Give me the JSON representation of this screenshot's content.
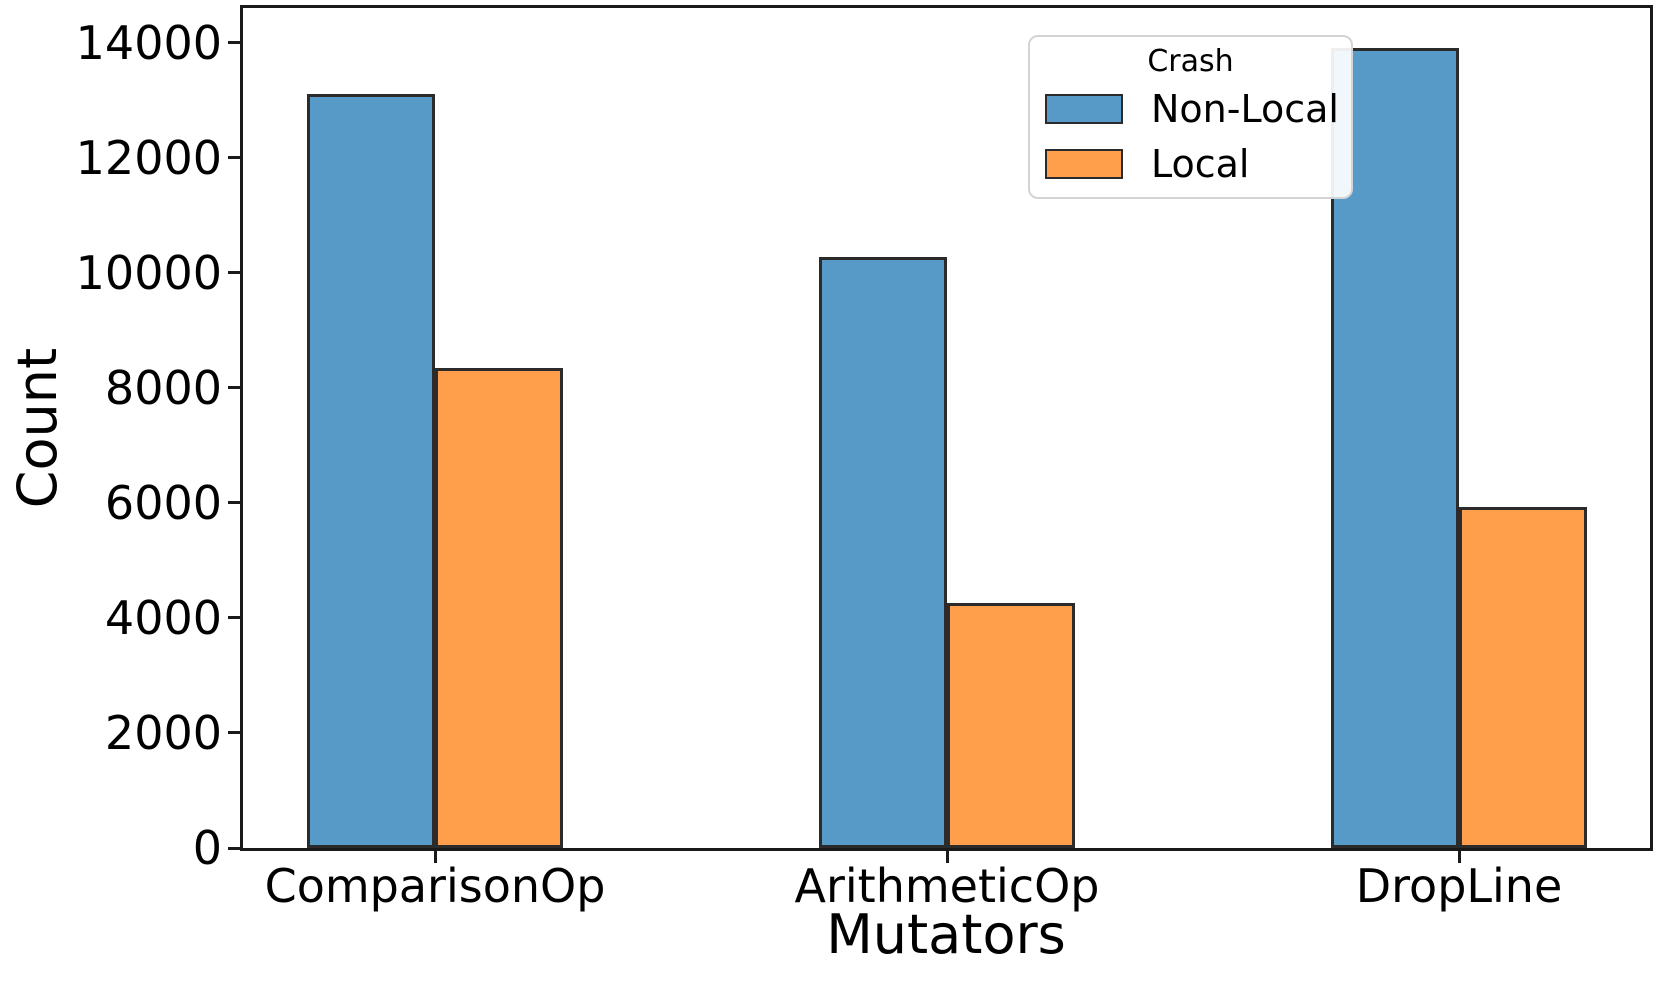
{
  "chart_data": {
    "type": "bar",
    "title": "",
    "xlabel": "Mutators",
    "ylabel": "Count",
    "categories": [
      "ComparisonOp",
      "ArithmeticOp",
      "DropLine"
    ],
    "series": [
      {
        "name": "Non-Local",
        "color": "#5799C7",
        "values": [
          13100,
          10270,
          13900
        ]
      },
      {
        "name": "Local",
        "color": "#FF9F4C",
        "values": [
          8350,
          4250,
          5930
        ]
      }
    ],
    "legend": {
      "title": "Crash",
      "position": "upper center"
    },
    "ylim": [
      0,
      14600
    ],
    "ytick_step": 2000,
    "ytick_labels": [
      "0",
      "2000",
      "4000",
      "6000",
      "8000",
      "10000",
      "12000",
      "14000"
    ],
    "grid": false,
    "background": "#ffffff",
    "bar_edge_color": "#2b2b2b",
    "spine_color": "#1a1a1a"
  }
}
